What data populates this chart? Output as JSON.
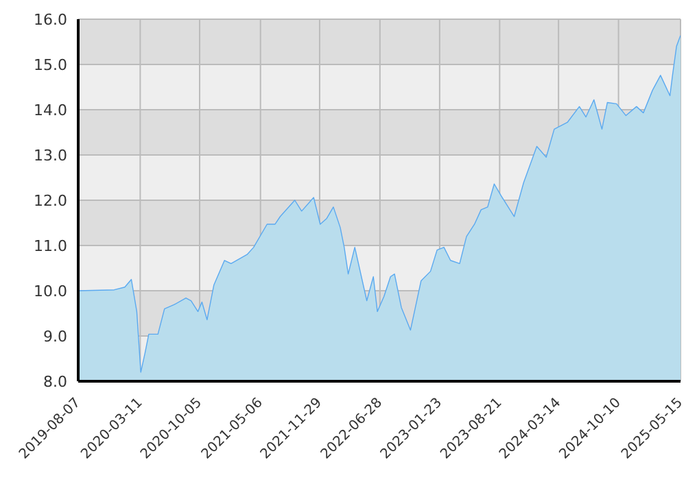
{
  "chart_data": {
    "type": "area",
    "x": [
      "2019-08-07",
      "2019-12-11",
      "2020-01-17",
      "2020-02-09",
      "2020-02-28",
      "2020-03-13",
      "2020-03-27",
      "2020-04-10",
      "2020-05-12",
      "2020-06-04",
      "2020-07-07",
      "2020-08-18",
      "2020-09-05",
      "2020-09-29",
      "2020-10-13",
      "2020-10-31",
      "2020-11-24",
      "2020-12-31",
      "2021-01-23",
      "2021-03-20",
      "2021-04-12",
      "2021-05-29",
      "2021-06-26",
      "2021-07-14",
      "2021-09-03",
      "2021-09-27",
      "2021-11-08",
      "2021-12-01",
      "2021-12-24",
      "2022-01-16",
      "2022-02-09",
      "2022-02-23",
      "2022-03-09",
      "2022-04-01",
      "2022-05-13",
      "2022-06-05",
      "2022-06-19",
      "2022-07-12",
      "2022-08-04",
      "2022-08-18",
      "2022-09-11",
      "2022-10-13",
      "2022-11-19",
      "2022-12-22",
      "2023-01-14",
      "2023-02-07",
      "2023-03-02",
      "2023-04-03",
      "2023-04-27",
      "2023-05-25",
      "2023-06-17",
      "2023-07-10",
      "2023-08-02",
      "2023-08-26",
      "2023-10-11",
      "2023-11-13",
      "2023-12-29",
      "2024-01-31",
      "2024-02-28",
      "2024-04-14",
      "2024-05-26",
      "2024-06-18",
      "2024-07-16",
      "2024-08-13",
      "2024-09-01",
      "2024-10-03",
      "2024-11-05",
      "2024-12-12",
      "2025-01-05",
      "2025-02-06",
      "2025-03-06",
      "2025-04-08",
      "2025-04-17",
      "2025-05-01",
      "2025-05-15"
    ],
    "series": [
      {
        "color": "#5aa9f0",
        "values": [
          10.0,
          10.02,
          10.08,
          10.25,
          9.54,
          8.2,
          8.6,
          9.04,
          9.04,
          9.6,
          9.69,
          9.84,
          9.78,
          9.54,
          9.75,
          9.36,
          10.13,
          10.67,
          10.6,
          10.8,
          10.96,
          11.47,
          11.47,
          11.64,
          12.0,
          11.76,
          12.06,
          11.47,
          11.6,
          11.85,
          11.4,
          10.96,
          10.37,
          10.96,
          9.78,
          10.31,
          9.54,
          9.87,
          10.31,
          10.37,
          9.63,
          9.13,
          10.22,
          10.43,
          10.9,
          10.96,
          10.67,
          10.6,
          11.2,
          11.47,
          11.79,
          11.85,
          12.36,
          12.1,
          11.64,
          12.39,
          13.19,
          12.95,
          13.57,
          13.72,
          14.07,
          13.84,
          14.22,
          13.57,
          14.16,
          14.13,
          13.87,
          14.07,
          13.93,
          14.43,
          14.76,
          14.31,
          14.76,
          15.4,
          15.64
        ]
      }
    ],
    "xlim": [
      "2019-08-07",
      "2025-05-15"
    ],
    "xticks": [
      "2019-08-07",
      "2020-03-11",
      "2020-10-05",
      "2021-05-06",
      "2021-11-29",
      "2022-06-28",
      "2023-01-23",
      "2023-08-21",
      "2024-03-14",
      "2024-10-10",
      "2025-05-15"
    ],
    "ylim": [
      8,
      16
    ],
    "yticks": [
      {
        "value": 8,
        "label": "8.0"
      },
      {
        "value": 9,
        "label": "9.0"
      },
      {
        "value": 10,
        "label": "10.0"
      },
      {
        "value": 11,
        "label": "11.0"
      },
      {
        "value": 12,
        "label": "12.0"
      },
      {
        "value": 13,
        "label": "13.0"
      },
      {
        "value": 14,
        "label": "14.0"
      },
      {
        "value": 15,
        "label": "15.0"
      },
      {
        "value": 16,
        "label": "16.0"
      }
    ],
    "grid": true,
    "legend": false
  }
}
